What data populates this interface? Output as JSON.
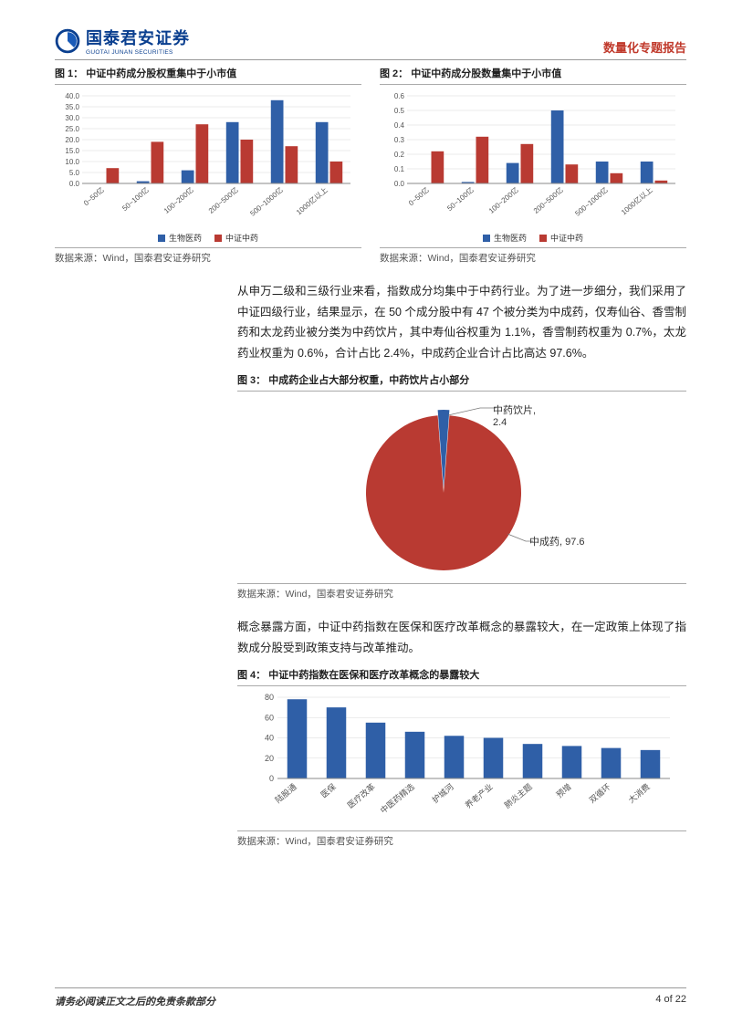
{
  "header": {
    "brand_cn": "国泰君安证券",
    "brand_en": "GUOTAI JUNAN SECURITIES",
    "doc_type": "数量化专题报告",
    "logo_colors": {
      "ring": "#0a3f8f",
      "inner": "#1a5bb8"
    }
  },
  "palette": {
    "blue": "#2f5fa7",
    "red": "#b93a32",
    "grid": "#d8d8d8",
    "axis": "#888888",
    "text": "#333333"
  },
  "fig1": {
    "title": "图 1：  中证中药成分股权重集中于小市值",
    "type": "bar",
    "categories": [
      "0~50亿",
      "50~100亿",
      "100~200亿",
      "200~500亿",
      "500~1000亿",
      "1000亿以上"
    ],
    "series": [
      {
        "name": "生物医药",
        "color": "#2f5fa7",
        "values": [
          0,
          1,
          6,
          28,
          38,
          28
        ]
      },
      {
        "name": "中证中药",
        "color": "#b93a32",
        "values": [
          7,
          19,
          27,
          20,
          17,
          10
        ]
      }
    ],
    "ylim": [
      0,
      40
    ],
    "ytick_step": 5,
    "source": "数据来源：Wind，国泰君安证券研究"
  },
  "fig2": {
    "title": "图 2：  中证中药成分股数量集中于小市值",
    "type": "bar",
    "categories": [
      "0~50亿",
      "50~100亿",
      "100~200亿",
      "200~500亿",
      "500~1000亿",
      "1000亿以上"
    ],
    "series": [
      {
        "name": "生物医药",
        "color": "#2f5fa7",
        "values": [
          0,
          0.01,
          0.14,
          0.5,
          0.15,
          0.15
        ]
      },
      {
        "name": "中证中药",
        "color": "#b93a32",
        "values": [
          0.22,
          0.32,
          0.27,
          0.13,
          0.07,
          0.02
        ]
      }
    ],
    "ylim": [
      0,
      0.6
    ],
    "ytick_step": 0.1,
    "source": "数据来源：Wind，国泰君安证券研究"
  },
  "para1": "从申万二级和三级行业来看，指数成分均集中于中药行业。为了进一步细分，我们采用了中证四级行业，结果显示，在 50 个成分股中有 47 个被分类为中成药，仅寿仙谷、香雪制药和太龙药业被分类为中药饮片，其中寿仙谷权重为 1.1%，香雪制药权重为 0.7%，太龙药业权重为 0.6%，合计占比 2.4%，中成药企业合计占比高达 97.6%。",
  "fig3": {
    "title": "图 3：  中成药企业占大部分权重，中药饮片占小部分",
    "type": "pie",
    "slices": [
      {
        "label": "中成药",
        "value": 97.6,
        "color": "#b93a32",
        "display": "中成药, 97.6"
      },
      {
        "label": "中药饮片",
        "value": 2.4,
        "color": "#2f5fa7",
        "display": "中药饮片, 2.4"
      }
    ],
    "source": "数据来源：Wind，国泰君安证券研究"
  },
  "para2": "概念暴露方面，中证中药指数在医保和医疗改革概念的暴露较大，在一定政策上体现了指数成分股受到政策支持与改革推动。",
  "fig4": {
    "title": "图 4：  中证中药指数在医保和医疗改革概念的暴露较大",
    "type": "bar",
    "categories": [
      "陆股通",
      "医保",
      "医疗改革",
      "中医药精选",
      "护城河",
      "养老产业",
      "肺炎主题",
      "预增",
      "双循环",
      "大消费"
    ],
    "values": [
      78,
      70,
      55,
      46,
      42,
      40,
      34,
      32,
      30,
      28
    ],
    "color": "#2f5fa7",
    "ylim": [
      0,
      80
    ],
    "ytick_step": 20,
    "source": "数据来源：Wind，国泰君安证券研究"
  },
  "footer": {
    "left": "请务必阅读正文之后的免责条款部分",
    "right": "4 of 22"
  }
}
